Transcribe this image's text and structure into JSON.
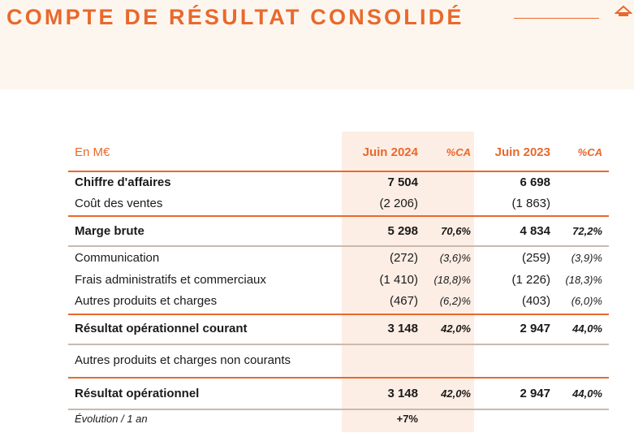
{
  "header": {
    "title": "COMPTE DE RÉSULTAT CONSOLIDÉ"
  },
  "table": {
    "columns": {
      "label": "En M€",
      "v2024": "Juin 2024",
      "pct2024": "%CA",
      "v2023": "Juin 2023",
      "pct2023": "%CA"
    },
    "rows": [
      {
        "label": "Chiffre d'affaires",
        "v2024": "7 504",
        "v2023": "6 698"
      },
      {
        "label": "Coût des ventes",
        "v2024": "(2 206)",
        "v2023": "(1 863)"
      },
      {
        "label": "Marge brute",
        "v2024": "5 298",
        "pct2024": "70,6%",
        "v2023": "4 834",
        "pct2023": "72,2%"
      },
      {
        "label": "Communication",
        "v2024": "(272)",
        "pct2024": "(3,6)%",
        "v2023": "(259)",
        "pct2023": "(3,9)%"
      },
      {
        "label": "Frais administratifs et commerciaux",
        "v2024": "(1 410)",
        "pct2024": "(18,8)%",
        "v2023": "(1 226)",
        "pct2023": "(18,3)%"
      },
      {
        "label": "Autres produits et charges",
        "v2024": "(467)",
        "pct2024": "(6,2)%",
        "v2023": "(403)",
        "pct2023": "(6,0)%"
      },
      {
        "label": "Résultat opérationnel courant",
        "v2024": "3 148",
        "pct2024": "42,0%",
        "v2023": "2 947",
        "pct2023": "44,0%"
      },
      {
        "label": "Autres produits et charges non courants"
      },
      {
        "label": "Résultat opérationnel",
        "v2024": "3 148",
        "pct2024": "42,0%",
        "v2023": "2 947",
        "pct2023": "44,0%"
      },
      {
        "label": "Évolution / 1 an",
        "v2024": "+7%"
      }
    ]
  }
}
